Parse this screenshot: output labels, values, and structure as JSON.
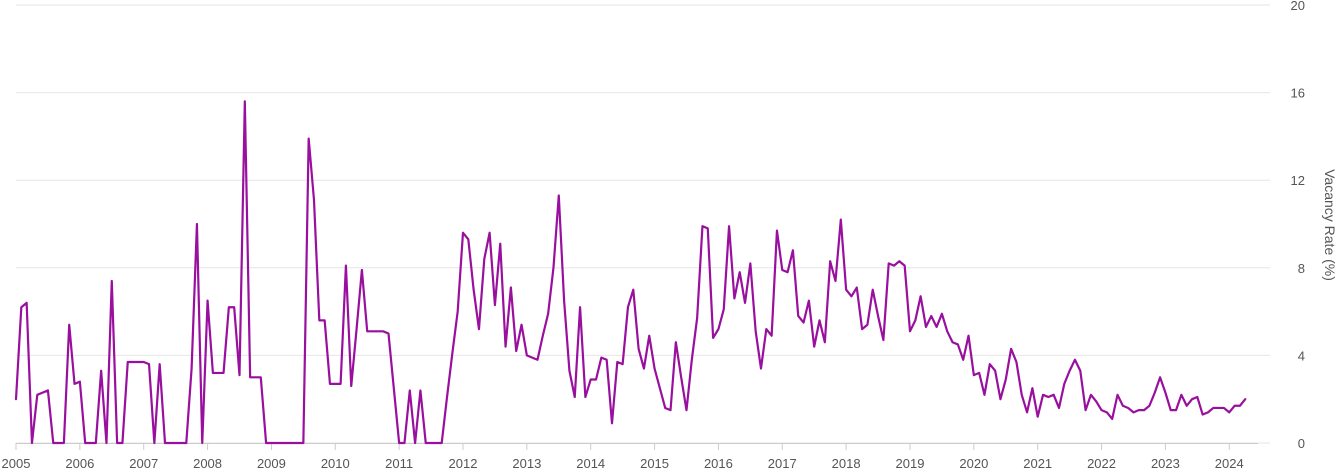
{
  "chart_data": {
    "type": "line",
    "title": "",
    "xlabel": "",
    "ylabel": "Vacancy Rate (%)",
    "ylim": [
      0,
      20
    ],
    "y_ticks": [
      0,
      4,
      8,
      12,
      16,
      20
    ],
    "x_ticks": [
      "2005",
      "2006",
      "2007",
      "2008",
      "2009",
      "2010",
      "2011",
      "2012",
      "2013",
      "2014",
      "2015",
      "2016",
      "2017",
      "2018",
      "2019",
      "2020",
      "2021",
      "2022",
      "2023",
      "2024"
    ],
    "grid": "horizontal",
    "y_axis_position": "right",
    "line_color": "#990f9e",
    "series": [
      {
        "points": [
          [
            "2005-01",
            2.0
          ],
          [
            "2005-02",
            6.2
          ],
          [
            "2005-03",
            6.4
          ],
          [
            "2005-04",
            0.0
          ],
          [
            "2005-05",
            2.2
          ],
          [
            "2005-06",
            2.3
          ],
          [
            "2005-07",
            2.4
          ],
          [
            "2005-08",
            0.0
          ],
          [
            "2005-09",
            0.0
          ],
          [
            "2005-10",
            0.0
          ],
          [
            "2005-11",
            5.4
          ],
          [
            "2005-12",
            2.7
          ],
          [
            "2006-01",
            2.8
          ],
          [
            "2006-02",
            0.0
          ],
          [
            "2006-03",
            0.0
          ],
          [
            "2006-04",
            0.0
          ],
          [
            "2006-05",
            3.3
          ],
          [
            "2006-06",
            0.0
          ],
          [
            "2006-07",
            7.4
          ],
          [
            "2006-08",
            0.0
          ],
          [
            "2006-09",
            0.0
          ],
          [
            "2006-10",
            3.7
          ],
          [
            "2006-11",
            3.7
          ],
          [
            "2006-12",
            3.7
          ],
          [
            "2007-01",
            3.7
          ],
          [
            "2007-02",
            3.6
          ],
          [
            "2007-03",
            0.0
          ],
          [
            "2007-04",
            3.6
          ],
          [
            "2007-05",
            0.0
          ],
          [
            "2007-06",
            0.0
          ],
          [
            "2007-07",
            0.0
          ],
          [
            "2007-08",
            0.0
          ],
          [
            "2007-09",
            0.0
          ],
          [
            "2007-10",
            3.4
          ],
          [
            "2007-11",
            10.0
          ],
          [
            "2007-12",
            0.0
          ],
          [
            "2008-01",
            6.5
          ],
          [
            "2008-02",
            3.2
          ],
          [
            "2008-03",
            3.2
          ],
          [
            "2008-04",
            3.2
          ],
          [
            "2008-05",
            6.2
          ],
          [
            "2008-06",
            6.2
          ],
          [
            "2008-07",
            3.1
          ],
          [
            "2008-08",
            15.6
          ],
          [
            "2008-09",
            3.0
          ],
          [
            "2008-10",
            3.0
          ],
          [
            "2008-11",
            3.0
          ],
          [
            "2008-12",
            0.0
          ],
          [
            "2009-01",
            0.0
          ],
          [
            "2009-02",
            0.0
          ],
          [
            "2009-03",
            0.0
          ],
          [
            "2009-04",
            0.0
          ],
          [
            "2009-05",
            0.0
          ],
          [
            "2009-06",
            0.0
          ],
          [
            "2009-07",
            0.0
          ],
          [
            "2009-08",
            13.9
          ],
          [
            "2009-09",
            11.1
          ],
          [
            "2009-10",
            5.6
          ],
          [
            "2009-11",
            5.6
          ],
          [
            "2009-12",
            2.7
          ],
          [
            "2010-01",
            2.7
          ],
          [
            "2010-02",
            2.7
          ],
          [
            "2010-03",
            8.1
          ],
          [
            "2010-04",
            2.6
          ],
          [
            "2010-05",
            5.2
          ],
          [
            "2010-06",
            7.9
          ],
          [
            "2010-07",
            5.1
          ],
          [
            "2010-08",
            5.1
          ],
          [
            "2010-09",
            5.1
          ],
          [
            "2010-10",
            5.1
          ],
          [
            "2010-11",
            5.0
          ],
          [
            "2010-12",
            2.5
          ],
          [
            "2011-01",
            0.0
          ],
          [
            "2011-02",
            0.0
          ],
          [
            "2011-03",
            2.4
          ],
          [
            "2011-04",
            0.0
          ],
          [
            "2011-05",
            2.4
          ],
          [
            "2011-06",
            0.0
          ],
          [
            "2011-07",
            0.0
          ],
          [
            "2011-08",
            0.0
          ],
          [
            "2011-09",
            0.0
          ],
          [
            "2011-10",
            2.1
          ],
          [
            "2011-11",
            4.1
          ],
          [
            "2011-12",
            6.0
          ],
          [
            "2012-01",
            9.6
          ],
          [
            "2012-02",
            9.3
          ],
          [
            "2012-03",
            7.0
          ],
          [
            "2012-04",
            5.2
          ],
          [
            "2012-05",
            8.4
          ],
          [
            "2012-06",
            9.6
          ],
          [
            "2012-07",
            6.3
          ],
          [
            "2012-08",
            9.1
          ],
          [
            "2012-09",
            4.4
          ],
          [
            "2012-10",
            7.1
          ],
          [
            "2012-11",
            4.2
          ],
          [
            "2012-12",
            5.4
          ],
          [
            "2013-01",
            4.0
          ],
          [
            "2013-02",
            3.9
          ],
          [
            "2013-03",
            3.8
          ],
          [
            "2013-04",
            4.9
          ],
          [
            "2013-05",
            5.9
          ],
          [
            "2013-06",
            8.0
          ],
          [
            "2013-07",
            11.3
          ],
          [
            "2013-08",
            6.5
          ],
          [
            "2013-09",
            3.3
          ],
          [
            "2013-10",
            2.1
          ],
          [
            "2013-11",
            6.2
          ],
          [
            "2013-12",
            2.1
          ],
          [
            "2014-01",
            2.9
          ],
          [
            "2014-02",
            2.9
          ],
          [
            "2014-03",
            3.9
          ],
          [
            "2014-04",
            3.8
          ],
          [
            "2014-05",
            0.9
          ],
          [
            "2014-06",
            3.7
          ],
          [
            "2014-07",
            3.6
          ],
          [
            "2014-08",
            6.2
          ],
          [
            "2014-09",
            7.0
          ],
          [
            "2014-10",
            4.3
          ],
          [
            "2014-11",
            3.4
          ],
          [
            "2014-12",
            4.9
          ],
          [
            "2015-01",
            3.4
          ],
          [
            "2015-02",
            2.5
          ],
          [
            "2015-03",
            1.6
          ],
          [
            "2015-04",
            1.5
          ],
          [
            "2015-05",
            4.6
          ],
          [
            "2015-06",
            3.0
          ],
          [
            "2015-07",
            1.5
          ],
          [
            "2015-08",
            3.8
          ],
          [
            "2015-09",
            5.7
          ],
          [
            "2015-10",
            9.9
          ],
          [
            "2015-11",
            9.8
          ],
          [
            "2015-12",
            4.8
          ],
          [
            "2016-01",
            5.2
          ],
          [
            "2016-02",
            6.1
          ],
          [
            "2016-03",
            9.9
          ],
          [
            "2016-04",
            6.6
          ],
          [
            "2016-05",
            7.8
          ],
          [
            "2016-06",
            6.4
          ],
          [
            "2016-07",
            8.2
          ],
          [
            "2016-08",
            5.1
          ],
          [
            "2016-09",
            3.4
          ],
          [
            "2016-10",
            5.2
          ],
          [
            "2016-11",
            4.9
          ],
          [
            "2016-12",
            9.7
          ],
          [
            "2017-01",
            7.9
          ],
          [
            "2017-02",
            7.8
          ],
          [
            "2017-03",
            8.8
          ],
          [
            "2017-04",
            5.8
          ],
          [
            "2017-05",
            5.5
          ],
          [
            "2017-06",
            6.5
          ],
          [
            "2017-07",
            4.4
          ],
          [
            "2017-08",
            5.6
          ],
          [
            "2017-09",
            4.6
          ],
          [
            "2017-10",
            8.3
          ],
          [
            "2017-11",
            7.4
          ],
          [
            "2017-12",
            10.2
          ],
          [
            "2018-01",
            7.0
          ],
          [
            "2018-02",
            6.7
          ],
          [
            "2018-03",
            7.1
          ],
          [
            "2018-04",
            5.2
          ],
          [
            "2018-05",
            5.4
          ],
          [
            "2018-06",
            7.0
          ],
          [
            "2018-07",
            5.8
          ],
          [
            "2018-08",
            4.7
          ],
          [
            "2018-09",
            8.2
          ],
          [
            "2018-10",
            8.1
          ],
          [
            "2018-11",
            8.3
          ],
          [
            "2018-12",
            8.1
          ],
          [
            "2019-01",
            5.1
          ],
          [
            "2019-02",
            5.6
          ],
          [
            "2019-03",
            6.7
          ],
          [
            "2019-04",
            5.3
          ],
          [
            "2019-05",
            5.8
          ],
          [
            "2019-06",
            5.3
          ],
          [
            "2019-07",
            5.9
          ],
          [
            "2019-08",
            5.1
          ],
          [
            "2019-09",
            4.6
          ],
          [
            "2019-10",
            4.5
          ],
          [
            "2019-11",
            3.8
          ],
          [
            "2019-12",
            4.9
          ],
          [
            "2020-01",
            3.1
          ],
          [
            "2020-02",
            3.2
          ],
          [
            "2020-03",
            2.2
          ],
          [
            "2020-04",
            3.6
          ],
          [
            "2020-05",
            3.3
          ],
          [
            "2020-06",
            2.0
          ],
          [
            "2020-07",
            2.9
          ],
          [
            "2020-08",
            4.3
          ],
          [
            "2020-09",
            3.7
          ],
          [
            "2020-10",
            2.2
          ],
          [
            "2020-11",
            1.4
          ],
          [
            "2020-12",
            2.5
          ],
          [
            "2021-01",
            1.2
          ],
          [
            "2021-02",
            2.2
          ],
          [
            "2021-03",
            2.1
          ],
          [
            "2021-04",
            2.2
          ],
          [
            "2021-05",
            1.6
          ],
          [
            "2021-06",
            2.7
          ],
          [
            "2021-07",
            3.3
          ],
          [
            "2021-08",
            3.8
          ],
          [
            "2021-09",
            3.3
          ],
          [
            "2021-10",
            1.5
          ],
          [
            "2021-11",
            2.2
          ],
          [
            "2021-12",
            1.9
          ],
          [
            "2022-01",
            1.5
          ],
          [
            "2022-02",
            1.4
          ],
          [
            "2022-03",
            1.1
          ],
          [
            "2022-04",
            2.2
          ],
          [
            "2022-05",
            1.7
          ],
          [
            "2022-06",
            1.6
          ],
          [
            "2022-07",
            1.4
          ],
          [
            "2022-08",
            1.5
          ],
          [
            "2022-09",
            1.5
          ],
          [
            "2022-10",
            1.7
          ],
          [
            "2022-11",
            2.3
          ],
          [
            "2022-12",
            3.0
          ],
          [
            "2023-01",
            2.3
          ],
          [
            "2023-02",
            1.5
          ],
          [
            "2023-03",
            1.5
          ],
          [
            "2023-04",
            2.2
          ],
          [
            "2023-05",
            1.7
          ],
          [
            "2023-06",
            2.0
          ],
          [
            "2023-07",
            2.1
          ],
          [
            "2023-08",
            1.3
          ],
          [
            "2023-09",
            1.4
          ],
          [
            "2023-10",
            1.6
          ],
          [
            "2023-11",
            1.6
          ],
          [
            "2023-12",
            1.6
          ],
          [
            "2024-01",
            1.4
          ],
          [
            "2024-02",
            1.7
          ],
          [
            "2024-03",
            1.7
          ],
          [
            "2024-04",
            2.0
          ]
        ]
      }
    ]
  }
}
